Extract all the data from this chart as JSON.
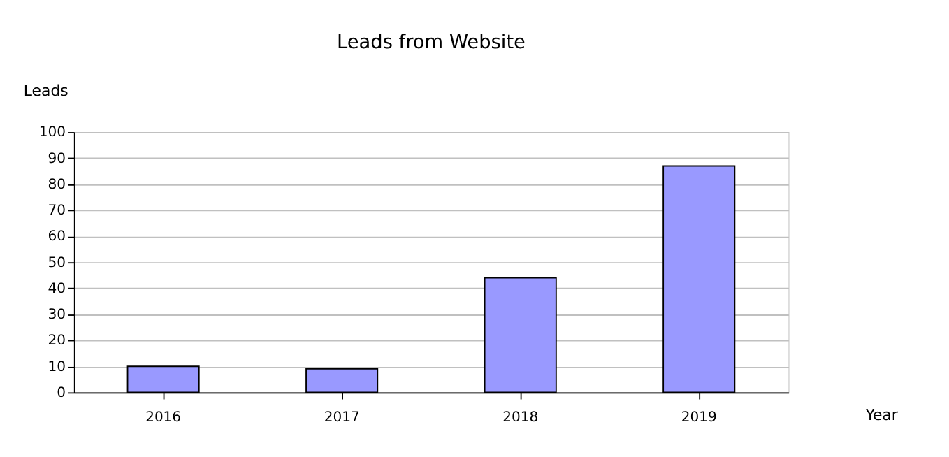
{
  "chart_data": {
    "type": "bar",
    "title": "Leads from Website",
    "xlabel": "Year",
    "ylabel": "Leads",
    "categories": [
      "2016",
      "2017",
      "2018",
      "2019"
    ],
    "values": [
      10,
      9,
      44,
      87
    ],
    "color": "#9999ff",
    "ylim": [
      0,
      100
    ],
    "yticks": [
      0,
      10,
      20,
      30,
      40,
      50,
      60,
      70,
      80,
      90,
      100
    ],
    "grid": "y"
  }
}
